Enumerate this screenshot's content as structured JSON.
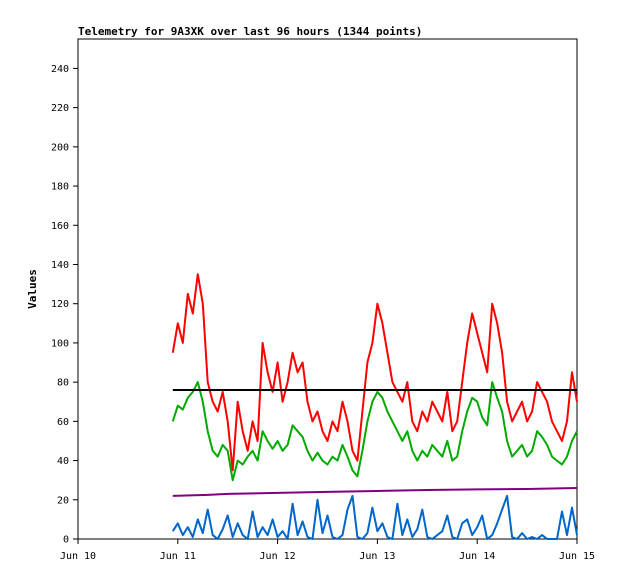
{
  "chart_data": {
    "type": "line",
    "title": "Telemetry for 9A3XK over last 96 hours (1344 points)",
    "xlabel": "",
    "ylabel": "Values",
    "x_ticks": [
      "Jun 10",
      "Jun 11",
      "Jun 12",
      "Jun 13",
      "Jun 14",
      "Jun 15"
    ],
    "xlim": [
      0,
      5
    ],
    "ylim": [
      0,
      255
    ],
    "y_ticks": [
      0,
      20,
      40,
      60,
      80,
      100,
      120,
      140,
      160,
      180,
      200,
      220,
      240
    ],
    "grid": false,
    "series": [
      {
        "color": "#ff0000",
        "x": [
          0.95,
          1.0,
          1.05,
          1.1,
          1.15,
          1.2,
          1.25,
          1.3,
          1.35,
          1.4,
          1.45,
          1.5,
          1.55,
          1.6,
          1.65,
          1.7,
          1.75,
          1.8,
          1.85,
          1.9,
          1.95,
          2.0,
          2.05,
          2.1,
          2.15,
          2.2,
          2.25,
          2.3,
          2.35,
          2.4,
          2.45,
          2.5,
          2.55,
          2.6,
          2.65,
          2.7,
          2.75,
          2.8,
          2.85,
          2.9,
          2.95,
          3.0,
          3.05,
          3.1,
          3.15,
          3.2,
          3.25,
          3.3,
          3.35,
          3.4,
          3.45,
          3.5,
          3.55,
          3.6,
          3.65,
          3.7,
          3.75,
          3.8,
          3.85,
          3.9,
          3.95,
          4.0,
          4.05,
          4.1,
          4.15,
          4.2,
          4.25,
          4.3,
          4.35,
          4.4,
          4.45,
          4.5,
          4.55,
          4.6,
          4.65,
          4.7,
          4.75,
          4.8,
          4.85,
          4.9,
          4.95,
          5.0
        ],
        "values": [
          95,
          110,
          100,
          125,
          115,
          135,
          120,
          80,
          70,
          65,
          75,
          60,
          35,
          70,
          55,
          45,
          60,
          50,
          100,
          85,
          75,
          90,
          70,
          80,
          95,
          85,
          90,
          70,
          60,
          65,
          55,
          50,
          60,
          55,
          70,
          60,
          45,
          40,
          65,
          90,
          100,
          120,
          110,
          95,
          80,
          75,
          70,
          80,
          60,
          55,
          65,
          60,
          70,
          65,
          60,
          75,
          55,
          60,
          80,
          100,
          115,
          105,
          95,
          85,
          120,
          110,
          95,
          70,
          60,
          65,
          70,
          60,
          65,
          80,
          75,
          70,
          60,
          55,
          50,
          60,
          85,
          70
        ]
      },
      {
        "color": "#00aa00",
        "x": [
          0.95,
          1.0,
          1.05,
          1.1,
          1.15,
          1.2,
          1.25,
          1.3,
          1.35,
          1.4,
          1.45,
          1.5,
          1.55,
          1.6,
          1.65,
          1.7,
          1.75,
          1.8,
          1.85,
          1.9,
          1.95,
          2.0,
          2.05,
          2.1,
          2.15,
          2.2,
          2.25,
          2.3,
          2.35,
          2.4,
          2.45,
          2.5,
          2.55,
          2.6,
          2.65,
          2.7,
          2.75,
          2.8,
          2.85,
          2.9,
          2.95,
          3.0,
          3.05,
          3.1,
          3.15,
          3.2,
          3.25,
          3.3,
          3.35,
          3.4,
          3.45,
          3.5,
          3.55,
          3.6,
          3.65,
          3.7,
          3.75,
          3.8,
          3.85,
          3.9,
          3.95,
          4.0,
          4.05,
          4.1,
          4.15,
          4.2,
          4.25,
          4.3,
          4.35,
          4.4,
          4.45,
          4.5,
          4.55,
          4.6,
          4.65,
          4.7,
          4.75,
          4.8,
          4.85,
          4.9,
          4.95,
          5.0
        ],
        "values": [
          60,
          68,
          66,
          72,
          75,
          80,
          70,
          55,
          45,
          42,
          48,
          45,
          30,
          40,
          38,
          42,
          45,
          40,
          55,
          50,
          46,
          50,
          45,
          48,
          58,
          55,
          52,
          45,
          40,
          44,
          40,
          38,
          42,
          40,
          48,
          42,
          35,
          32,
          45,
          60,
          70,
          75,
          72,
          65,
          60,
          55,
          50,
          55,
          45,
          40,
          45,
          42,
          48,
          45,
          42,
          50,
          40,
          42,
          55,
          65,
          72,
          70,
          62,
          58,
          80,
          72,
          65,
          50,
          42,
          45,
          48,
          42,
          45,
          55,
          52,
          48,
          42,
          40,
          38,
          42,
          50,
          55
        ]
      },
      {
        "color": "#000000",
        "x": [
          0.95,
          5.0
        ],
        "values": [
          76,
          76
        ]
      },
      {
        "color": "#800080",
        "x": [
          0.95,
          1.3,
          1.5,
          2.0,
          2.5,
          3.0,
          3.5,
          4.0,
          4.5,
          5.0
        ],
        "values": [
          22,
          22.5,
          23,
          23.5,
          24,
          24.5,
          25,
          25.3,
          25.5,
          26
        ]
      },
      {
        "color": "#0066cc",
        "x": [
          0.95,
          1.0,
          1.05,
          1.1,
          1.15,
          1.2,
          1.25,
          1.3,
          1.35,
          1.4,
          1.45,
          1.5,
          1.55,
          1.6,
          1.65,
          1.7,
          1.75,
          1.8,
          1.85,
          1.9,
          1.95,
          2.0,
          2.05,
          2.1,
          2.15,
          2.2,
          2.25,
          2.3,
          2.35,
          2.4,
          2.45,
          2.5,
          2.55,
          2.6,
          2.65,
          2.7,
          2.75,
          2.8,
          2.85,
          2.9,
          2.95,
          3.0,
          3.05,
          3.1,
          3.15,
          3.2,
          3.25,
          3.3,
          3.35,
          3.4,
          3.45,
          3.5,
          3.55,
          3.6,
          3.65,
          3.7,
          3.75,
          3.8,
          3.85,
          3.9,
          3.95,
          4.0,
          4.05,
          4.1,
          4.15,
          4.2,
          4.25,
          4.3,
          4.35,
          4.4,
          4.45,
          4.5,
          4.55,
          4.6,
          4.65,
          4.7,
          4.75,
          4.8,
          4.85,
          4.9,
          4.95,
          5.0
        ],
        "values": [
          4,
          8,
          2,
          6,
          1,
          10,
          3,
          15,
          2,
          0,
          5,
          12,
          1,
          8,
          2,
          0,
          14,
          1,
          6,
          2,
          10,
          1,
          4,
          0,
          18,
          2,
          9,
          1,
          0,
          20,
          3,
          12,
          1,
          0,
          2,
          15,
          22,
          1,
          0,
          3,
          16,
          4,
          8,
          1,
          0,
          18,
          2,
          10,
          1,
          5,
          15,
          1,
          0,
          2,
          4,
          12,
          1,
          0,
          8,
          10,
          2,
          6,
          12,
          0,
          2,
          8,
          15,
          22,
          1,
          0,
          3,
          0,
          1,
          0,
          2,
          0,
          0,
          0,
          14,
          2,
          16,
          2
        ]
      }
    ]
  }
}
